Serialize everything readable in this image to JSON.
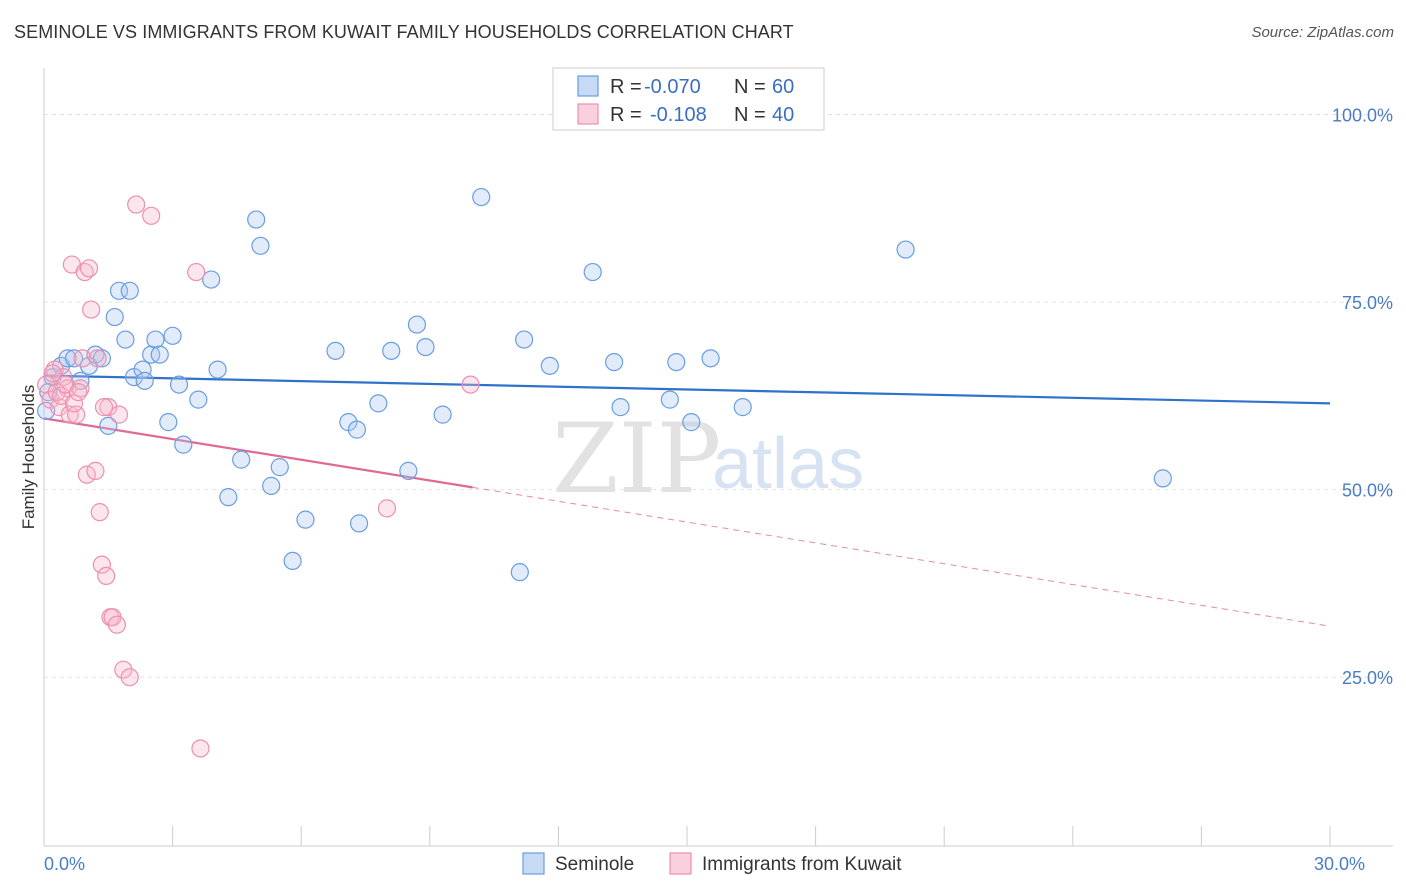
{
  "header": {
    "title": "SEMINOLE VS IMMIGRANTS FROM KUWAIT FAMILY HOUSEHOLDS CORRELATION CHART",
    "source": "Source: ZipAtlas.com"
  },
  "watermark": {
    "zip": "ZIP",
    "atlas": "atlas"
  },
  "legend": {
    "r_label": "R =",
    "n_label": "N =",
    "series_a": {
      "r": "-0.070",
      "n": "60"
    },
    "series_b": {
      "r": "-0.108",
      "n": "40"
    }
  },
  "chart_data": {
    "type": "scatter",
    "title": "SEMINOLE VS IMMIGRANTS FROM KUWAIT FAMILY HOUSEHOLDS CORRELATION CHART",
    "xlabel": "",
    "ylabel": "Family Households",
    "xlim": [
      0,
      30
    ],
    "ylim": [
      2.5,
      105
    ],
    "x_tick_labels": [
      {
        "value": 0,
        "label": "0.0%"
      },
      {
        "value": 30,
        "label": "30.0%"
      }
    ],
    "y_tick_labels": [
      {
        "value": 100,
        "label": "100.0%"
      },
      {
        "value": 75,
        "label": "75.0%"
      },
      {
        "value": 50,
        "label": "50.0%"
      },
      {
        "value": 25,
        "label": "25.0%"
      }
    ],
    "grid": true,
    "legend_position": "top-center",
    "colors": {
      "seminole": "#6a9ee0",
      "kuwait": "#ee8fb0",
      "seminole_line": "#2f72c9",
      "kuwait_line": "#e06a95"
    },
    "series": [
      {
        "name": "Seminole",
        "r": -0.07,
        "n": 60,
        "trend": {
          "x": [
            0,
            30
          ],
          "y": [
            65.2,
            61.5
          ]
        },
        "points": [
          [
            0.05,
            60.5
          ],
          [
            0.2,
            65
          ],
          [
            0.4,
            66.5
          ],
          [
            0.55,
            67.5
          ],
          [
            0.7,
            67.5
          ],
          [
            0.85,
            64.5
          ],
          [
            1.05,
            66.5
          ],
          [
            1.2,
            68
          ],
          [
            1.35,
            67.5
          ],
          [
            1.5,
            58.5
          ],
          [
            1.65,
            73
          ],
          [
            1.75,
            76.5
          ],
          [
            1.9,
            70
          ],
          [
            2.0,
            76.5
          ],
          [
            2.1,
            65
          ],
          [
            2.3,
            66
          ],
          [
            2.35,
            64.5
          ],
          [
            2.5,
            68
          ],
          [
            2.6,
            70
          ],
          [
            2.7,
            68
          ],
          [
            2.9,
            59
          ],
          [
            3.0,
            70.5
          ],
          [
            3.15,
            64
          ],
          [
            3.25,
            56
          ],
          [
            3.6,
            62
          ],
          [
            3.9,
            78
          ],
          [
            4.05,
            66
          ],
          [
            4.3,
            49
          ],
          [
            4.6,
            54
          ],
          [
            4.95,
            86
          ],
          [
            5.05,
            82.5
          ],
          [
            5.3,
            50.5
          ],
          [
            5.5,
            53
          ],
          [
            5.8,
            40.5
          ],
          [
            6.1,
            46
          ],
          [
            6.8,
            68.5
          ],
          [
            7.1,
            59
          ],
          [
            7.3,
            58
          ],
          [
            7.35,
            45.5
          ],
          [
            7.8,
            61.5
          ],
          [
            8.1,
            68.5
          ],
          [
            8.5,
            52.5
          ],
          [
            8.7,
            72
          ],
          [
            8.9,
            69
          ],
          [
            9.3,
            60
          ],
          [
            10.2,
            89
          ],
          [
            11.1,
            39
          ],
          [
            11.2,
            70
          ],
          [
            11.8,
            66.5
          ],
          [
            12.8,
            79
          ],
          [
            13.3,
            67
          ],
          [
            13.45,
            61
          ],
          [
            14.6,
            62
          ],
          [
            14.75,
            67
          ],
          [
            15.1,
            59
          ],
          [
            15.55,
            67.5
          ],
          [
            16.3,
            61
          ],
          [
            20.1,
            82
          ],
          [
            26.1,
            51.5
          ],
          [
            0.1,
            63
          ]
        ]
      },
      {
        "name": "Immigrants from Kuwait",
        "r": -0.108,
        "n": 40,
        "trend": {
          "x": [
            0,
            10
          ],
          "y": [
            59.5,
            50.3
          ]
        },
        "trend_dashed": {
          "x": [
            10,
            30
          ],
          "y": [
            50.3,
            31.8
          ]
        },
        "points": [
          [
            0.05,
            64
          ],
          [
            0.15,
            62
          ],
          [
            0.25,
            66
          ],
          [
            0.35,
            61
          ],
          [
            0.45,
            65
          ],
          [
            0.55,
            63.5
          ],
          [
            0.6,
            60
          ],
          [
            0.65,
            80
          ],
          [
            0.75,
            60
          ],
          [
            0.85,
            63.5
          ],
          [
            0.9,
            67.5
          ],
          [
            0.95,
            79
          ],
          [
            1.0,
            52
          ],
          [
            1.05,
            79.5
          ],
          [
            1.1,
            74
          ],
          [
            1.2,
            52.5
          ],
          [
            1.3,
            47
          ],
          [
            1.35,
            40
          ],
          [
            1.45,
            38.5
          ],
          [
            1.5,
            61
          ],
          [
            1.55,
            33
          ],
          [
            1.6,
            33
          ],
          [
            1.7,
            32
          ],
          [
            1.75,
            60
          ],
          [
            1.85,
            26
          ],
          [
            2.0,
            25
          ],
          [
            2.15,
            88
          ],
          [
            2.5,
            86.5
          ],
          [
            3.55,
            79
          ],
          [
            3.65,
            15.5
          ],
          [
            8.0,
            47.5
          ],
          [
            9.95,
            64
          ],
          [
            0.2,
            65.5
          ],
          [
            0.3,
            63
          ],
          [
            0.4,
            62.5
          ],
          [
            0.5,
            64
          ],
          [
            0.7,
            61.5
          ],
          [
            0.8,
            63
          ],
          [
            1.25,
            67.5
          ],
          [
            1.4,
            61
          ]
        ]
      }
    ]
  }
}
